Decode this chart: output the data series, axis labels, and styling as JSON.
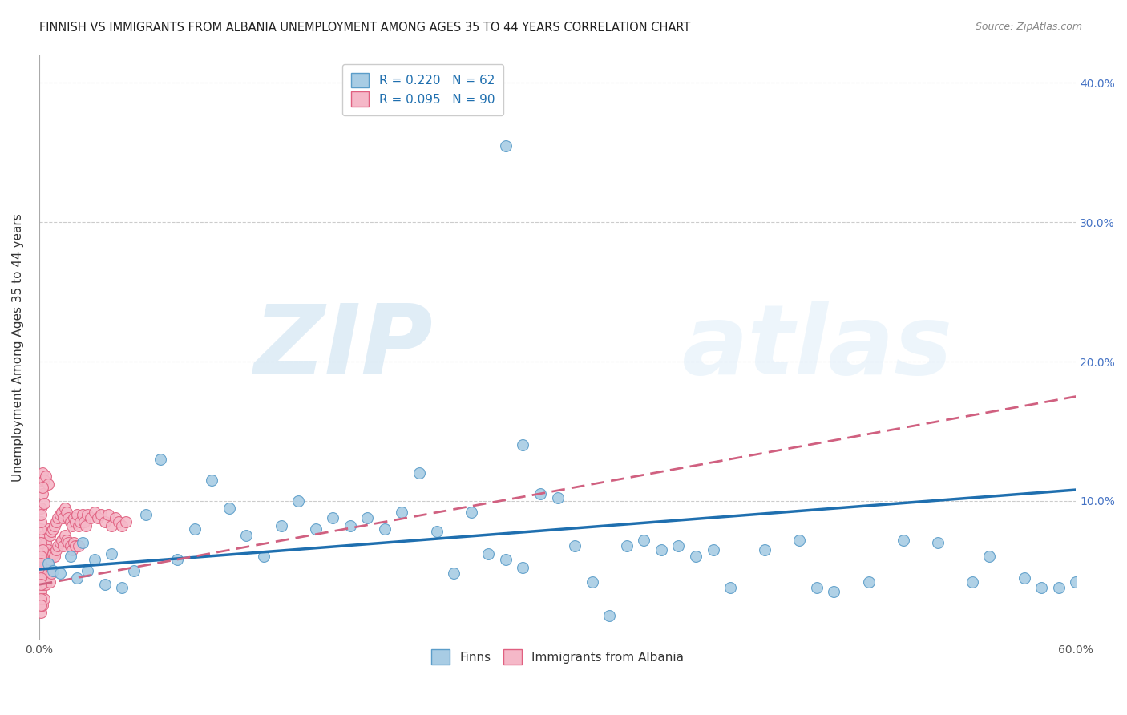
{
  "title": "FINNISH VS IMMIGRANTS FROM ALBANIA UNEMPLOYMENT AMONG AGES 35 TO 44 YEARS CORRELATION CHART",
  "source": "Source: ZipAtlas.com",
  "ylabel": "Unemployment Among Ages 35 to 44 years",
  "watermark_zip": "ZIP",
  "watermark_atlas": "atlas",
  "xlim": [
    0,
    0.6
  ],
  "ylim": [
    0,
    0.42
  ],
  "legend_finn_label": "R = 0.220   N = 62",
  "legend_albania_label": "R = 0.095   N = 90",
  "finn_color": "#a8cce4",
  "finn_edge_color": "#5b9dc9",
  "albania_color": "#f5b8c8",
  "albania_edge_color": "#e06080",
  "finn_line_color": "#1f6faf",
  "albania_line_color": "#d06080",
  "background_color": "#ffffff",
  "grid_color": "#cccccc",
  "finn_line_x0": 0.0,
  "finn_line_y0": 0.051,
  "finn_line_x1": 0.6,
  "finn_line_y1": 0.108,
  "albania_line_x0": 0.0,
  "albania_line_y0": 0.04,
  "albania_line_x1": 0.6,
  "albania_line_y1": 0.175,
  "finn_scatter_x": [
    0.005,
    0.008,
    0.012,
    0.018,
    0.022,
    0.025,
    0.028,
    0.032,
    0.038,
    0.042,
    0.048,
    0.055,
    0.062,
    0.07,
    0.08,
    0.09,
    0.1,
    0.11,
    0.12,
    0.13,
    0.14,
    0.15,
    0.16,
    0.17,
    0.18,
    0.19,
    0.2,
    0.21,
    0.22,
    0.23,
    0.24,
    0.25,
    0.26,
    0.27,
    0.28,
    0.29,
    0.3,
    0.31,
    0.32,
    0.33,
    0.34,
    0.35,
    0.36,
    0.37,
    0.38,
    0.39,
    0.4,
    0.42,
    0.44,
    0.45,
    0.46,
    0.48,
    0.5,
    0.52,
    0.54,
    0.55,
    0.57,
    0.58,
    0.59,
    0.6,
    0.27,
    0.28
  ],
  "finn_scatter_y": [
    0.055,
    0.05,
    0.048,
    0.06,
    0.045,
    0.07,
    0.05,
    0.058,
    0.04,
    0.062,
    0.038,
    0.05,
    0.09,
    0.13,
    0.058,
    0.08,
    0.115,
    0.095,
    0.075,
    0.06,
    0.082,
    0.1,
    0.08,
    0.088,
    0.082,
    0.088,
    0.08,
    0.092,
    0.12,
    0.078,
    0.048,
    0.092,
    0.062,
    0.058,
    0.052,
    0.105,
    0.102,
    0.068,
    0.042,
    0.018,
    0.068,
    0.072,
    0.065,
    0.068,
    0.06,
    0.065,
    0.038,
    0.065,
    0.072,
    0.038,
    0.035,
    0.042,
    0.072,
    0.07,
    0.042,
    0.06,
    0.045,
    0.038,
    0.038,
    0.042,
    0.355,
    0.14
  ],
  "albania_scatter_x": [
    0.001,
    0.001,
    0.001,
    0.002,
    0.002,
    0.002,
    0.002,
    0.003,
    0.003,
    0.003,
    0.003,
    0.004,
    0.004,
    0.004,
    0.005,
    0.005,
    0.005,
    0.006,
    0.006,
    0.006,
    0.007,
    0.007,
    0.007,
    0.008,
    0.008,
    0.009,
    0.009,
    0.01,
    0.01,
    0.011,
    0.011,
    0.012,
    0.012,
    0.013,
    0.013,
    0.014,
    0.014,
    0.015,
    0.015,
    0.016,
    0.016,
    0.017,
    0.017,
    0.018,
    0.018,
    0.019,
    0.019,
    0.02,
    0.02,
    0.021,
    0.021,
    0.022,
    0.023,
    0.023,
    0.024,
    0.025,
    0.026,
    0.027,
    0.028,
    0.03,
    0.032,
    0.034,
    0.036,
    0.038,
    0.04,
    0.042,
    0.044,
    0.046,
    0.048,
    0.05,
    0.001,
    0.002,
    0.003,
    0.004,
    0.005,
    0.001,
    0.002,
    0.003,
    0.001,
    0.002,
    0.001,
    0.001,
    0.001,
    0.002,
    0.001,
    0.001,
    0.001,
    0.001,
    0.001,
    0.001
  ],
  "albania_scatter_y": [
    0.05,
    0.035,
    0.02,
    0.065,
    0.05,
    0.04,
    0.025,
    0.075,
    0.06,
    0.045,
    0.03,
    0.07,
    0.055,
    0.04,
    0.08,
    0.065,
    0.048,
    0.075,
    0.058,
    0.042,
    0.078,
    0.062,
    0.048,
    0.08,
    0.062,
    0.082,
    0.06,
    0.085,
    0.065,
    0.088,
    0.068,
    0.09,
    0.07,
    0.092,
    0.072,
    0.088,
    0.068,
    0.095,
    0.075,
    0.092,
    0.072,
    0.088,
    0.07,
    0.085,
    0.068,
    0.082,
    0.065,
    0.088,
    0.07,
    0.085,
    0.068,
    0.09,
    0.082,
    0.068,
    0.085,
    0.09,
    0.085,
    0.082,
    0.09,
    0.088,
    0.092,
    0.088,
    0.09,
    0.085,
    0.09,
    0.082,
    0.088,
    0.085,
    0.082,
    0.085,
    0.115,
    0.12,
    0.115,
    0.118,
    0.112,
    0.095,
    0.105,
    0.098,
    0.07,
    0.065,
    0.08,
    0.085,
    0.09,
    0.11,
    0.06,
    0.055,
    0.045,
    0.04,
    0.03,
    0.025
  ],
  "title_fontsize": 10.5,
  "axis_label_fontsize": 11,
  "tick_fontsize": 10,
  "legend_fontsize": 11,
  "right_tick_color": "#4472c4"
}
